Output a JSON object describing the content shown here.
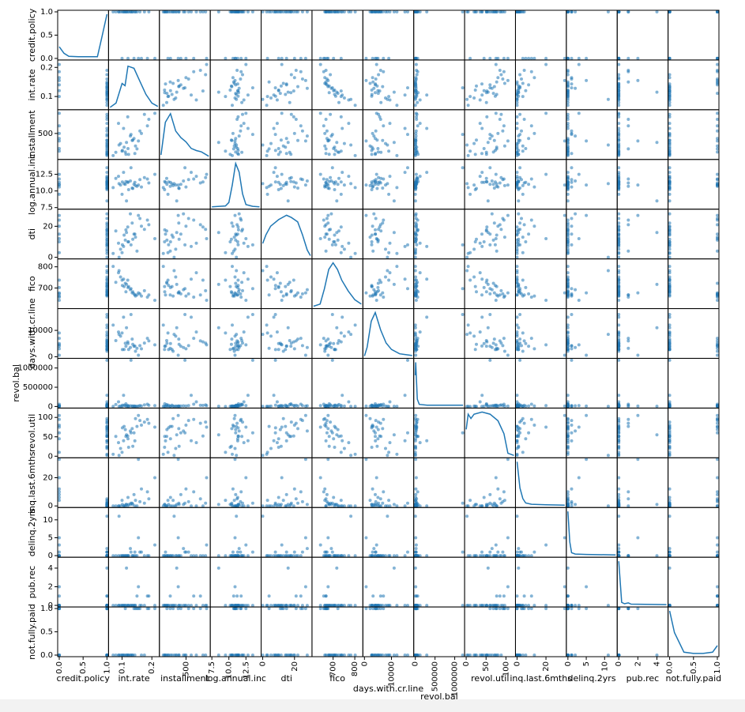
{
  "chart_data": {
    "type": "scatter_matrix",
    "color": "#1f77b4",
    "variables": [
      {
        "name": "credit.policy",
        "lim": [
          0,
          1
        ],
        "ticks": [
          {
            "value": 0,
            "label": "0.0"
          },
          {
            "value": 0.5,
            "label": "0.5"
          },
          {
            "value": 1,
            "label": "1.0"
          }
        ],
        "kde": {
          "x": [
            0,
            0.1,
            0.2,
            0.4,
            0.8,
            0.9,
            1
          ],
          "y": [
            0.25,
            0.1,
            0.03,
            0.02,
            0.02,
            0.5,
            1
          ]
        }
      },
      {
        "name": "int.rate",
        "lim": [
          0.06,
          0.22
        ],
        "ticks": [
          0.1,
          0.2
        ],
        "kde": {
          "x": [
            0.06,
            0.08,
            0.1,
            0.11,
            0.12,
            0.14,
            0.16,
            0.18,
            0.2,
            0.22
          ],
          "y": [
            0,
            0.1,
            0.55,
            0.5,
            0.95,
            0.9,
            0.6,
            0.3,
            0.1,
            0.02
          ]
        }
      },
      {
        "name": "installment",
        "lim": [
          15,
          940
        ],
        "ticks": [
          500
        ],
        "kde": {
          "x": [
            15,
            100,
            200,
            300,
            400,
            500,
            600,
            700,
            800,
            940
          ],
          "y": [
            0.05,
            0.8,
            1,
            0.6,
            0.45,
            0.35,
            0.2,
            0.15,
            0.12,
            0.02
          ]
        }
      },
      {
        "name": "log.annual.inc",
        "lim": [
          7.5,
          14.5
        ],
        "ticks": [
          7.5,
          {
            "value": 10,
            "label": "10.0"
          },
          12.5
        ],
        "kde": {
          "x": [
            7.5,
            9.5,
            10,
            10.5,
            11,
            11.5,
            12,
            12.5,
            13.5,
            14.5
          ],
          "y": [
            0,
            0.02,
            0.1,
            0.5,
            1,
            0.8,
            0.3,
            0.05,
            0.01,
            0
          ]
        }
      },
      {
        "name": "dti",
        "lim": [
          0,
          30
        ],
        "ticks": [
          0,
          20
        ],
        "kde": {
          "x": [
            0,
            2,
            5,
            10,
            15,
            18,
            22,
            25,
            28,
            30
          ],
          "y": [
            0.3,
            0.5,
            0.7,
            0.85,
            0.95,
            0.9,
            0.8,
            0.5,
            0.15,
            0.02
          ]
        }
      },
      {
        "name": "fico",
        "lim": [
          610,
          830
        ],
        "ticks": [
          700,
          800
        ],
        "kde": {
          "x": [
            610,
            640,
            660,
            680,
            700,
            720,
            740,
            770,
            800,
            830
          ],
          "y": [
            0,
            0.05,
            0.4,
            0.85,
            1,
            0.85,
            0.6,
            0.35,
            0.15,
            0.05
          ]
        }
      },
      {
        "name": "days.with.cr.line",
        "lim": [
          0,
          17650
        ],
        "ticks": [
          0,
          10000
        ],
        "kde": {
          "x": [
            0,
            1000,
            2500,
            4000,
            6000,
            8000,
            10000,
            13000,
            17650
          ],
          "y": [
            0,
            0.2,
            0.8,
            1,
            0.6,
            0.3,
            0.15,
            0.05,
            0.01
          ]
        }
      },
      {
        "name": "revol.bal",
        "lim": [
          0,
          1210000
        ],
        "ticks": [
          0,
          500000,
          1000000
        ],
        "kde": {
          "x": [
            0,
            10000,
            50000,
            100000,
            300000,
            1210000
          ],
          "y": [
            0.7,
            1,
            0.15,
            0.03,
            0.01,
            0.01
          ]
        }
      },
      {
        "name": "revol.util",
        "lim": [
          0,
          120
        ],
        "ticks": [
          0,
          50,
          100
        ],
        "kde": {
          "x": [
            0,
            5,
            12,
            20,
            40,
            60,
            80,
            95,
            105,
            120
          ],
          "y": [
            0.6,
            0.95,
            0.85,
            0.95,
            1,
            0.95,
            0.8,
            0.5,
            0.05,
            0
          ]
        }
      },
      {
        "name": "inq.last.6mths",
        "lim": [
          0,
          33
        ],
        "ticks": [
          0,
          20
        ],
        "kde": {
          "x": [
            0,
            1,
            2,
            4,
            6,
            10,
            20,
            33
          ],
          "y": [
            1,
            0.7,
            0.4,
            0.15,
            0.05,
            0.02,
            0.01,
            0
          ]
        }
      },
      {
        "name": "delinq.2yrs",
        "lim": [
          0,
          13
        ],
        "ticks": [
          0,
          5,
          10
        ],
        "kde": {
          "x": [
            0,
            0.5,
            1,
            2,
            5,
            13
          ],
          "y": [
            1,
            0.3,
            0.05,
            0.02,
            0.01,
            0
          ]
        }
      },
      {
        "name": "pub.rec",
        "lim": [
          0,
          5
        ],
        "ticks": [
          0,
          2,
          4
        ],
        "kde": {
          "x": [
            0,
            0.3,
            0.6,
            1,
            1.3,
            5
          ],
          "y": [
            1,
            0.05,
            0.02,
            0.04,
            0.01,
            0
          ]
        }
      },
      {
        "name": "not.fully.paid",
        "lim": [
          0,
          1
        ],
        "ticks": [
          {
            "value": 0,
            "label": "0.0"
          },
          {
            "value": 0.5,
            "label": "0.5"
          },
          {
            "value": 1,
            "label": "1.0"
          }
        ],
        "kde": {
          "x": [
            0,
            0.1,
            0.3,
            0.5,
            0.7,
            0.9,
            1
          ],
          "y": [
            1,
            0.5,
            0.05,
            0.02,
            0.02,
            0.05,
            0.2
          ]
        }
      }
    ],
    "rows": [
      [
        1,
        0.119,
        829,
        11.35,
        19.5,
        737,
        5640,
        28854,
        52.1,
        0,
        0,
        0,
        0
      ],
      [
        1,
        0.107,
        228,
        11.08,
        14.3,
        707,
        2760,
        33623,
        76.7,
        0,
        0,
        0,
        0
      ],
      [
        1,
        0.136,
        367,
        10.37,
        11.6,
        682,
        4710,
        3511,
        25.6,
        1,
        0,
        0,
        0
      ],
      [
        1,
        0.101,
        162,
        11.35,
        8.1,
        712,
        2700,
        33667,
        73.2,
        1,
        0,
        0,
        0
      ],
      [
        1,
        0.143,
        103,
        11.3,
        15,
        667,
        4066,
        4740,
        39.5,
        0,
        1,
        0,
        0
      ],
      [
        1,
        0.079,
        125,
        11.9,
        16.98,
        727,
        6120,
        50807,
        51,
        0,
        0,
        0,
        0
      ],
      [
        1,
        0.15,
        194,
        10.71,
        4,
        667,
        3180,
        3839,
        76.8,
        0,
        0,
        1,
        1
      ],
      [
        1,
        0.111,
        131,
        11,
        11.08,
        722,
        5116,
        24220,
        68.6,
        0,
        0,
        0,
        1
      ],
      [
        1,
        0.113,
        87,
        11.41,
        17.7,
        682,
        3990,
        69909,
        51.1,
        1,
        0,
        0,
        0
      ],
      [
        1,
        0.122,
        84,
        10.2,
        10,
        707,
        2730,
        5630,
        23,
        1,
        0,
        0,
        0
      ],
      [
        1,
        0.134,
        360,
        10.43,
        22.09,
        677,
        6713,
        13846,
        71,
        2,
        0,
        0,
        0
      ],
      [
        1,
        0.088,
        700,
        12.2,
        9.1,
        772,
        9400,
        120000,
        35,
        0,
        0,
        0,
        0
      ],
      [
        1,
        0.16,
        550,
        11.7,
        25,
        672,
        4200,
        22000,
        92,
        3,
        1,
        0,
        1
      ],
      [
        1,
        0.095,
        300,
        10.9,
        5.2,
        752,
        7800,
        9000,
        20,
        0,
        0,
        0,
        0
      ],
      [
        1,
        0.175,
        880,
        12,
        18,
        687,
        5200,
        40000,
        88,
        2,
        0,
        0,
        0
      ],
      [
        1,
        0.07,
        60,
        10.5,
        2.5,
        802,
        12000,
        2000,
        5,
        0,
        0,
        0,
        0
      ],
      [
        1,
        0.128,
        450,
        11.5,
        28,
        692,
        3500,
        18000,
        65,
        1,
        2,
        0,
        0
      ],
      [
        1,
        0.145,
        250,
        10.8,
        13,
        662,
        2100,
        7000,
        97,
        4,
        0,
        0,
        1
      ],
      [
        1,
        0.105,
        600,
        12.8,
        7,
        742,
        15000,
        290000,
        40,
        0,
        0,
        0,
        0
      ],
      [
        1,
        0.19,
        780,
        11.2,
        21,
        667,
        6000,
        30000,
        85,
        5,
        0,
        1,
        1
      ],
      [
        0,
        0.14,
        400,
        11,
        15,
        672,
        4000,
        12000,
        60,
        8,
        0,
        0,
        1
      ],
      [
        0,
        0.165,
        500,
        10.6,
        20,
        662,
        3000,
        15000,
        80,
        12,
        1,
        0,
        0
      ],
      [
        0,
        0.12,
        200,
        11.3,
        10,
        702,
        5000,
        8000,
        45,
        6,
        0,
        0,
        0
      ],
      [
        0,
        0.185,
        650,
        11.8,
        24,
        657,
        7000,
        60000,
        95,
        10,
        0,
        1,
        1
      ],
      [
        0,
        0.1,
        150,
        9.5,
        3,
        737,
        9000,
        500,
        10,
        4,
        0,
        0,
        0
      ],
      [
        0,
        0.21,
        900,
        12.5,
        12,
        642,
        4500,
        25000,
        75,
        20,
        3,
        0,
        1
      ],
      [
        1,
        0.115,
        320,
        8.5,
        16,
        717,
        11000,
        5000,
        55,
        1,
        0,
        4,
        0
      ],
      [
        1,
        0.13,
        480,
        13.5,
        8,
        697,
        16000,
        1200000,
        60,
        2,
        1,
        0,
        0
      ],
      [
        1,
        0.09,
        270,
        11.1,
        0,
        782,
        8500,
        3000,
        2,
        0,
        11,
        0,
        0
      ],
      [
        0,
        0.155,
        350,
        10.9,
        27,
        677,
        600,
        10000,
        105,
        33,
        5,
        2,
        1
      ]
    ]
  }
}
